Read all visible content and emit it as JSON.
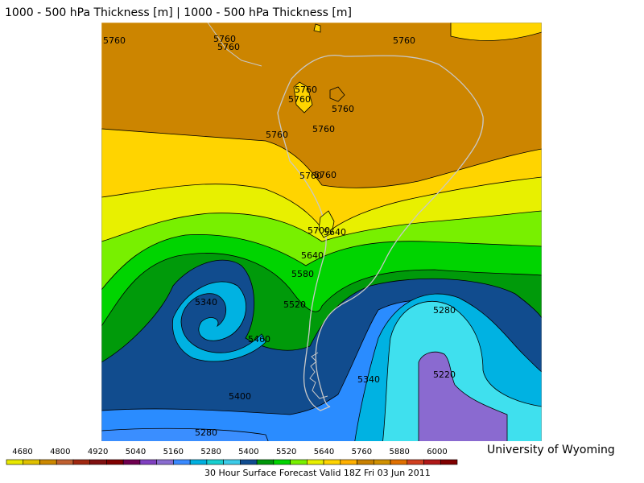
{
  "header": {
    "title": "1000 - 500 hPa Thickness [m] | 1000 - 500 hPa Thickness [m]"
  },
  "map": {
    "contour_labels": [
      "5760",
      "5760",
      "5760",
      "5760",
      "5760",
      "5760",
      "5760",
      "5760",
      "5760",
      "5760",
      "5760",
      "5700",
      "5640",
      "5640",
      "5580",
      "5520",
      "5460",
      "5400",
      "5340",
      "5340",
      "5280",
      "5280",
      "5220"
    ]
  },
  "scale": {
    "ticks": [
      "4680",
      "4800",
      "4920",
      "5040",
      "5160",
      "5280",
      "5400",
      "5520",
      "5640",
      "5760",
      "5880",
      "6000"
    ],
    "colors": [
      "#e8e800",
      "#e0c000",
      "#cc8800",
      "#c06030",
      "#a02810",
      "#801010",
      "#800000",
      "#700050",
      "#8040c0",
      "#8a6dd0",
      "#3a8aff",
      "#00b0e0",
      "#17cfcf",
      "#3ccbe8",
      "#104c90",
      "#00960a",
      "#00d400",
      "#78f000",
      "#e8f000",
      "#ffd400",
      "#ffb000",
      "#c88000",
      "#d09000",
      "#e07000",
      "#d04020",
      "#b01818",
      "#800000"
    ]
  },
  "footer": {
    "credit": "University of Wyoming",
    "caption": "30 Hour Surface Forecast Valid 18Z Fri 03 Jun 2011"
  }
}
